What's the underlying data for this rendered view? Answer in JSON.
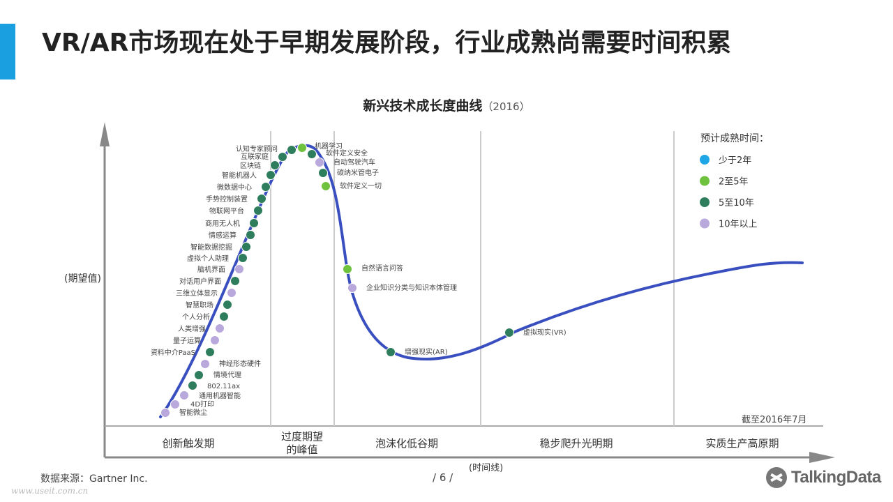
{
  "page": {
    "title": "VR/AR市场现在处于早期发展阶段，行业成熟尚需要时间积累",
    "source": "数据来源：Gartner Inc.",
    "page_number": "/ 6 /",
    "watermark": "www.useit.com.cn",
    "logo_text": "TalkingData",
    "accent_color": "#1aa0e0"
  },
  "chart_data": {
    "type": "scatter",
    "title": "新兴技术成长度曲线",
    "subtitle": "（2016）",
    "xlabel": "(时间线)",
    "ylabel": "(期望值)",
    "note": "截至2016年7月",
    "curve_color": "#3a4fbf",
    "phases": [
      "创新触发期",
      "过度期望\n的峰值",
      "泡沫化低谷期",
      "稳步爬升光明期",
      "实质生产高原期"
    ],
    "legend": {
      "title": "预计成熟时间：",
      "items": [
        {
          "label": "少于2年",
          "color": "#1ea6e6"
        },
        {
          "label": "2至5年",
          "color": "#6fc23e"
        },
        {
          "label": "5至10年",
          "color": "#2e7d5c"
        },
        {
          "label": "10年以上",
          "color": "#b9a8dc"
        }
      ]
    },
    "points": [
      {
        "label": "智能微尘",
        "cat": 3
      },
      {
        "label": "4D打印",
        "cat": 3
      },
      {
        "label": "通用机器智能",
        "cat": 3
      },
      {
        "label": "802.11ax",
        "cat": 2
      },
      {
        "label": "情境代理",
        "cat": 2
      },
      {
        "label": "神经形态硬件",
        "cat": 3
      },
      {
        "label": "资料中介PaaS",
        "cat": 2
      },
      {
        "label": "量子运算",
        "cat": 3
      },
      {
        "label": "人类增强",
        "cat": 3
      },
      {
        "label": "个人分析",
        "cat": 2
      },
      {
        "label": "智慧职场",
        "cat": 2
      },
      {
        "label": "三维立体显示",
        "cat": 3
      },
      {
        "label": "对话用户界面",
        "cat": 2
      },
      {
        "label": "脑机界面",
        "cat": 3
      },
      {
        "label": "虚拟个人助理",
        "cat": 2
      },
      {
        "label": "智能数据挖掘",
        "cat": 2
      },
      {
        "label": "情感运算",
        "cat": 2
      },
      {
        "label": "商用无人机",
        "cat": 2
      },
      {
        "label": "物联网平台",
        "cat": 2
      },
      {
        "label": "手势控制装置",
        "cat": 2
      },
      {
        "label": "微数据中心",
        "cat": 2
      },
      {
        "label": "智能机器人",
        "cat": 2
      },
      {
        "label": "区块链",
        "cat": 2
      },
      {
        "label": "互联家庭",
        "cat": 2
      },
      {
        "label": "认知专家顾问",
        "cat": 2
      },
      {
        "label": "机器学习",
        "cat": 1
      },
      {
        "label": "软件定义安全",
        "cat": 2
      },
      {
        "label": "自动驾驶汽车",
        "cat": 3
      },
      {
        "label": "碳纳米管电子",
        "cat": 2
      },
      {
        "label": "软件定义一切",
        "cat": 1
      },
      {
        "label": "自然语言问答",
        "cat": 1
      },
      {
        "label": "企业知识分类与知识本体管理",
        "cat": 3
      },
      {
        "label": "增强现实(AR)",
        "cat": 2
      },
      {
        "label": "虚拟现实(VR)",
        "cat": 2
      }
    ]
  }
}
